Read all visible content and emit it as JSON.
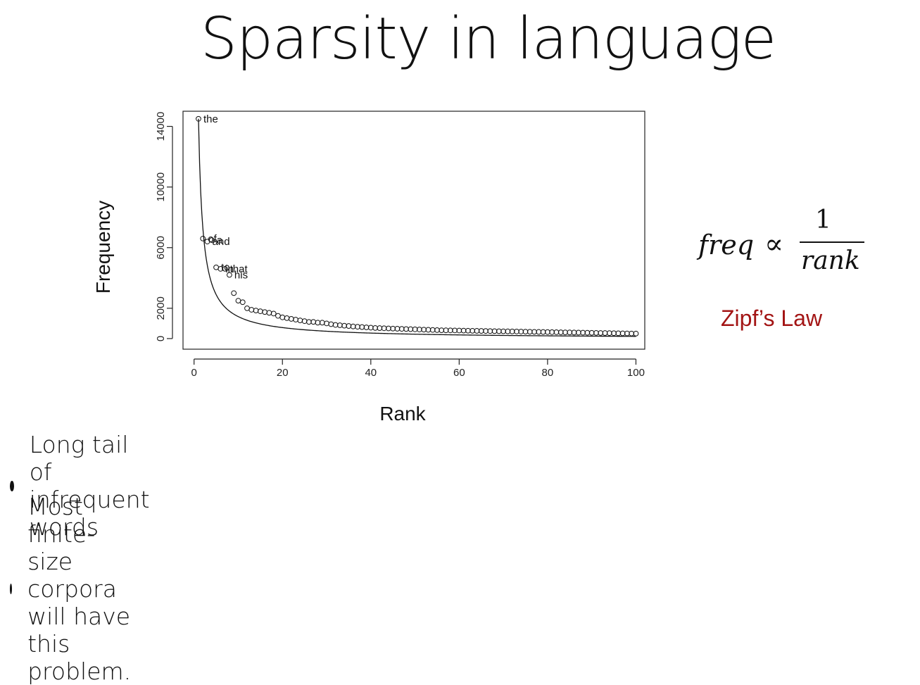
{
  "slide": {
    "title": "Sparsity in language",
    "formula": {
      "lhs": "freq",
      "symbol": "∝",
      "numerator": "1",
      "denominator": "rank"
    },
    "formula_caption": "Zipf’s Law",
    "bullets": [
      "Long tail of infrequent words",
      "Most finite-size corpora will have this problem."
    ]
  },
  "colors": {
    "caption": "#a31515",
    "text": "#111111"
  },
  "chart_data": {
    "type": "scatter",
    "xlabel": "Rank",
    "ylabel": "Frequency",
    "xticks": [
      0,
      20,
      40,
      60,
      80,
      100
    ],
    "yticks": [
      0,
      2000,
      6000,
      10000,
      14000
    ],
    "xlim": [
      -2.5,
      102
    ],
    "ylim": [
      -700,
      15000
    ],
    "grid": false,
    "points": [
      14500,
      6600,
      6400,
      6500,
      4700,
      4600,
      4600,
      4200,
      3000,
      2500,
      2400,
      2000,
      1900,
      1850,
      1800,
      1750,
      1700,
      1650,
      1500,
      1400,
      1350,
      1300,
      1250,
      1200,
      1150,
      1100,
      1100,
      1050,
      1050,
      1000,
      950,
      900,
      880,
      850,
      830,
      800,
      780,
      760,
      740,
      720,
      700,
      690,
      680,
      670,
      660,
      650,
      640,
      630,
      620,
      610,
      600,
      590,
      580,
      570,
      560,
      550,
      545,
      540,
      535,
      530,
      525,
      520,
      515,
      510,
      505,
      500,
      495,
      490,
      485,
      480,
      475,
      470,
      465,
      460,
      455,
      450,
      445,
      440,
      435,
      430,
      425,
      420,
      415,
      410,
      405,
      400,
      395,
      390,
      385,
      380,
      375,
      370,
      365,
      360,
      355,
      350,
      345,
      340,
      335,
      330
    ],
    "point_labels": [
      {
        "rank": 1,
        "word": "the"
      },
      {
        "rank": 2,
        "word": "of"
      },
      {
        "rank": 3,
        "word": "and"
      },
      {
        "rank": 4,
        "word": "a"
      },
      {
        "rank": 5,
        "word": "to"
      },
      {
        "rank": 6,
        "word": "in"
      },
      {
        "rank": 7,
        "word": "that"
      },
      {
        "rank": 8,
        "word": "his"
      }
    ],
    "curve": {
      "form": "C / rank",
      "C": 14500
    }
  }
}
